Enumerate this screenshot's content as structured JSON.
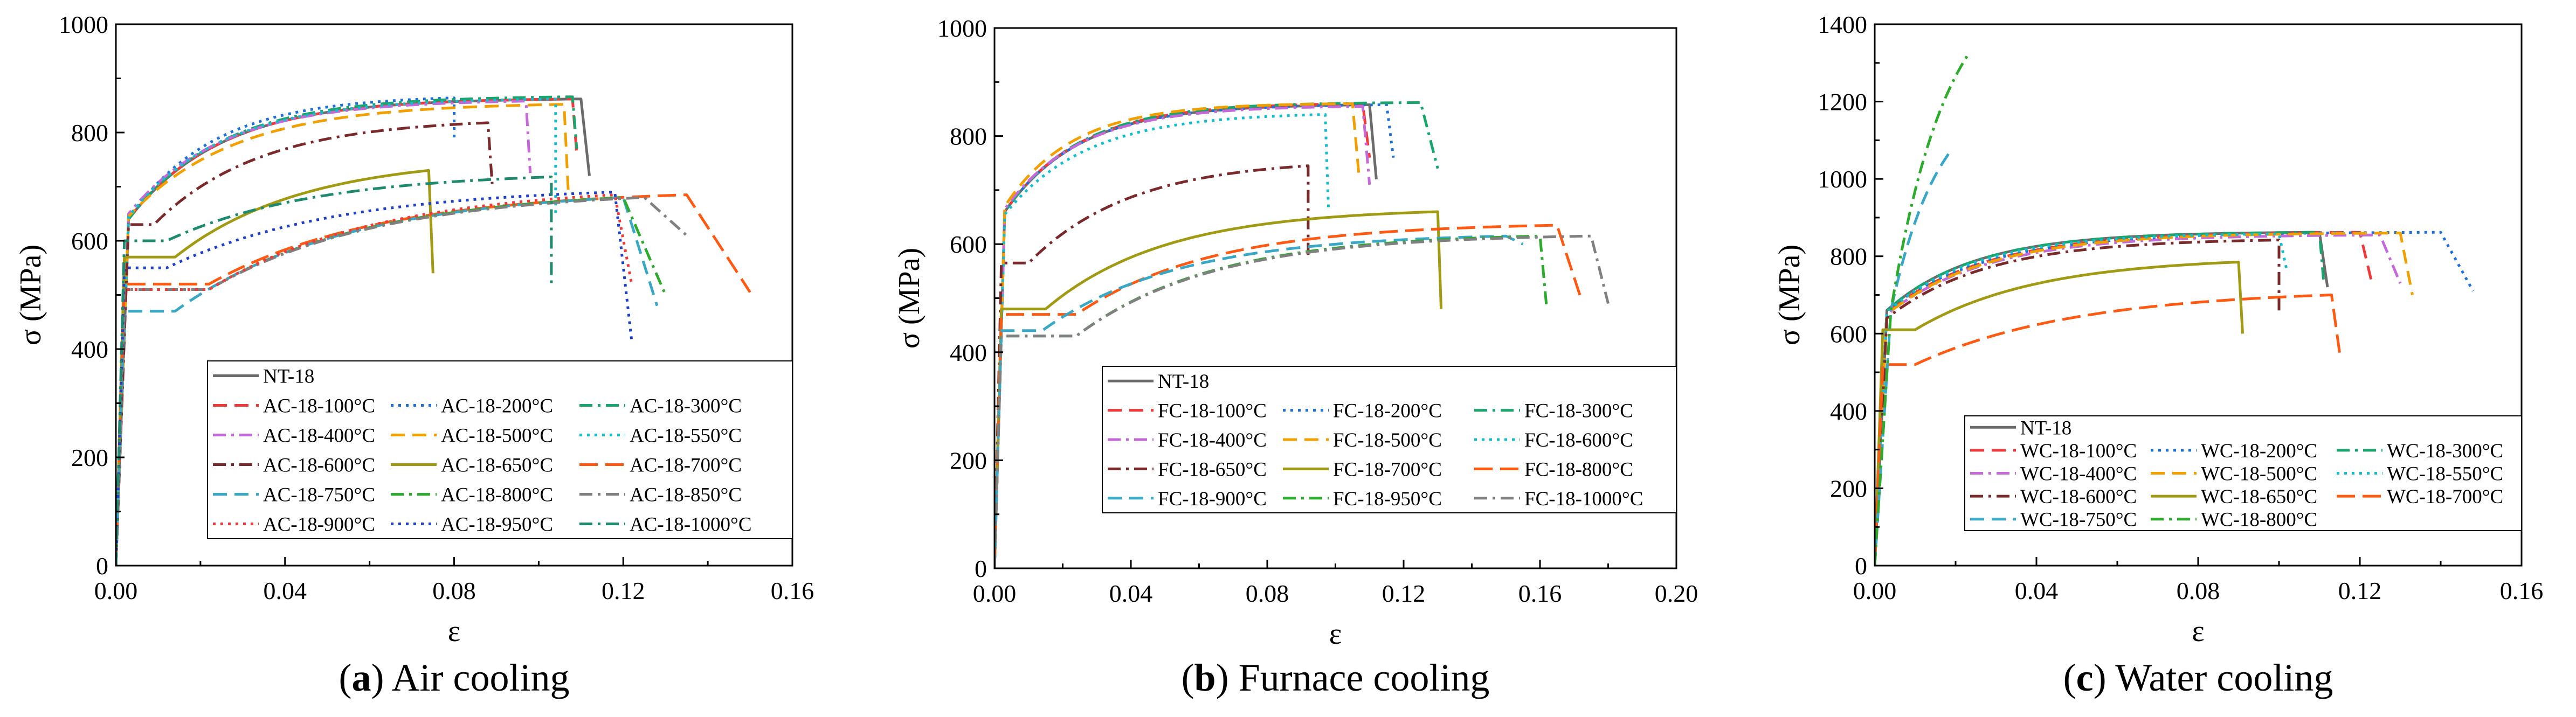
{
  "figure": {
    "panels": [
      "a",
      "b",
      "c"
    ]
  },
  "chart_data": [
    {
      "type": "line",
      "panel": "a",
      "caption_letter": "(a)",
      "caption_text": "Air cooling",
      "xlabel": "ε",
      "ylabel": "σ (MPa)",
      "xlim": [
        0,
        0.16
      ],
      "ylim": [
        0,
        1000
      ],
      "xticks": [
        0,
        0.04,
        0.08,
        0.12,
        0.16
      ],
      "xtick_labels": [
        "0.00",
        "0.04",
        "0.08",
        "0.12",
        "0.16"
      ],
      "yticks": [
        0,
        200,
        400,
        600,
        800,
        1000
      ],
      "ytick_labels": [
        "0",
        "200",
        "400",
        "600",
        "800",
        "1000"
      ],
      "legend_position": "bottom-right",
      "legend_columns": 3,
      "series": [
        {
          "name": "NT-18",
          "color": "#6b6b6b",
          "dash": "solid",
          "e0": 0.003,
          "s0": 640,
          "plateau": 0,
          "su": 862,
          "eu": 0.11,
          "k": 0.022,
          "sf": 720,
          "ef": 0.112
        },
        {
          "name": "AC-18-100°C",
          "color": "#ee3a3a",
          "dash": "dash",
          "e0": 0.003,
          "s0": 640,
          "plateau": 0,
          "su": 862,
          "eu": 0.108,
          "k": 0.022,
          "sf": 760,
          "ef": 0.109
        },
        {
          "name": "AC-18-200°C",
          "color": "#1f6fd6",
          "dash": "dot",
          "e0": 0.003,
          "s0": 640,
          "plateau": 0,
          "su": 864,
          "eu": 0.08,
          "k": 0.02,
          "sf": 790,
          "ef": 0.08
        },
        {
          "name": "AC-18-300°C",
          "color": "#1aa56e",
          "dash": "dashdot",
          "e0": 0.003,
          "s0": 640,
          "plateau": 0,
          "su": 866,
          "eu": 0.108,
          "k": 0.022,
          "sf": 770,
          "ef": 0.109
        },
        {
          "name": "AC-18-400°C",
          "color": "#c46ad8",
          "dash": "dashdot",
          "e0": 0.003,
          "s0": 650,
          "plateau": 0,
          "su": 858,
          "eu": 0.097,
          "k": 0.022,
          "sf": 725,
          "ef": 0.098
        },
        {
          "name": "AC-18-500°C",
          "color": "#f0a000",
          "dash": "dash",
          "e0": 0.003,
          "s0": 645,
          "plateau": 0,
          "su": 852,
          "eu": 0.106,
          "k": 0.025,
          "sf": 690,
          "ef": 0.107
        },
        {
          "name": "AC-18-550°C",
          "color": "#17bccc",
          "dash": "dot",
          "e0": 0.003,
          "s0": 645,
          "plateau": 0,
          "su": 862,
          "eu": 0.104,
          "k": 0.022,
          "sf": 650,
          "ef": 0.104
        },
        {
          "name": "AC-18-600°C",
          "color": "#7a2a2a",
          "dash": "dashdot",
          "e0": 0.003,
          "s0": 630,
          "plateau": 0.006,
          "su": 818,
          "eu": 0.088,
          "k": 0.025,
          "sf": 705,
          "ef": 0.089
        },
        {
          "name": "AC-18-650°C",
          "color": "#a09a14",
          "dash": "solid",
          "e0": 0.002,
          "s0": 570,
          "plateau": 0.012,
          "su": 730,
          "eu": 0.074,
          "k": 0.03,
          "sf": 540,
          "ef": 0.075
        },
        {
          "name": "AC-18-700°C",
          "color": "#ff5a14",
          "dash": "longdash",
          "e0": 0.002,
          "s0": 520,
          "plateau": 0.02,
          "su": 685,
          "eu": 0.135,
          "k": 0.04,
          "sf": 505,
          "ef": 0.15
        },
        {
          "name": "AC-18-750°C",
          "color": "#3aa7c4",
          "dash": "dash",
          "e0": 0.002,
          "s0": 470,
          "plateau": 0.012,
          "su": 680,
          "eu": 0.12,
          "k": 0.04,
          "sf": 480,
          "ef": 0.128
        },
        {
          "name": "AC-18-800°C",
          "color": "#2eab2e",
          "dash": "dashdot",
          "e0": 0.002,
          "s0": 510,
          "plateau": 0.02,
          "su": 680,
          "eu": 0.12,
          "k": 0.04,
          "sf": 500,
          "ef": 0.13
        },
        {
          "name": "AC-18-850°C",
          "color": "#808080",
          "dash": "dashdot",
          "e0": 0.002,
          "s0": 510,
          "plateau": 0.02,
          "su": 680,
          "eu": 0.125,
          "k": 0.04,
          "sf": 610,
          "ef": 0.135
        },
        {
          "name": "AC-18-900°C",
          "color": "#ee3a3a",
          "dash": "dot",
          "e0": 0.002,
          "s0": 510,
          "plateau": 0.02,
          "su": 685,
          "eu": 0.118,
          "k": 0.04,
          "sf": 520,
          "ef": 0.122
        },
        {
          "name": "AC-18-950°C",
          "color": "#1f3fc4",
          "dash": "dot",
          "e0": 0.002,
          "s0": 550,
          "plateau": 0.01,
          "su": 690,
          "eu": 0.118,
          "k": 0.04,
          "sf": 415,
          "ef": 0.122
        },
        {
          "name": "AC-18-1000°C",
          "color": "#1f8a6e",
          "dash": "dashdot",
          "e0": 0.002,
          "s0": 600,
          "plateau": 0.01,
          "su": 718,
          "eu": 0.103,
          "k": 0.035,
          "sf": 520,
          "ef": 0.103
        }
      ]
    },
    {
      "type": "line",
      "panel": "b",
      "caption_letter": "(b)",
      "caption_text": "Furnace cooling",
      "xlabel": "ε",
      "ylabel": "σ (MPa)",
      "xlim": [
        0,
        0.2
      ],
      "ylim": [
        0,
        1000
      ],
      "xticks": [
        0,
        0.04,
        0.08,
        0.12,
        0.16,
        0.2
      ],
      "xtick_labels": [
        "0.00",
        "0.04",
        "0.08",
        "0.12",
        "0.16",
        "0.20"
      ],
      "yticks": [
        0,
        200,
        400,
        600,
        800,
        1000
      ],
      "ytick_labels": [
        "0",
        "200",
        "400",
        "600",
        "800",
        "1000"
      ],
      "legend_position": "bottom-right",
      "legend_columns": 3,
      "series": [
        {
          "name": "NT-18",
          "color": "#6b6b6b",
          "dash": "solid",
          "e0": 0.003,
          "s0": 660,
          "plateau": 0,
          "su": 858,
          "eu": 0.11,
          "k": 0.022,
          "sf": 720,
          "ef": 0.112
        },
        {
          "name": "FC-18-100°C",
          "color": "#ee3a3a",
          "dash": "dash",
          "e0": 0.003,
          "s0": 660,
          "plateau": 0,
          "su": 860,
          "eu": 0.108,
          "k": 0.022,
          "sf": 760,
          "ef": 0.11
        },
        {
          "name": "FC-18-200°C",
          "color": "#1f6fd6",
          "dash": "dot",
          "e0": 0.003,
          "s0": 660,
          "plateau": 0,
          "su": 858,
          "eu": 0.115,
          "k": 0.022,
          "sf": 760,
          "ef": 0.117
        },
        {
          "name": "FC-18-300°C",
          "color": "#1aa56e",
          "dash": "dashdot",
          "e0": 0.003,
          "s0": 660,
          "plateau": 0,
          "su": 862,
          "eu": 0.125,
          "k": 0.022,
          "sf": 740,
          "ef": 0.13
        },
        {
          "name": "FC-18-400°C",
          "color": "#c46ad8",
          "dash": "dashdot",
          "e0": 0.003,
          "s0": 665,
          "plateau": 0,
          "su": 855,
          "eu": 0.108,
          "k": 0.022,
          "sf": 710,
          "ef": 0.11
        },
        {
          "name": "FC-18-500°C",
          "color": "#f0a000",
          "dash": "dash",
          "e0": 0.003,
          "s0": 670,
          "plateau": 0,
          "su": 860,
          "eu": 0.105,
          "k": 0.02,
          "sf": 720,
          "ef": 0.107
        },
        {
          "name": "FC-18-600°C",
          "color": "#17bccc",
          "dash": "dot",
          "e0": 0.003,
          "s0": 655,
          "plateau": 0,
          "su": 840,
          "eu": 0.097,
          "k": 0.024,
          "sf": 660,
          "ef": 0.098
        },
        {
          "name": "FC-18-650°C",
          "color": "#7a2a2a",
          "dash": "dashdot",
          "e0": 0.002,
          "s0": 565,
          "plateau": 0.008,
          "su": 745,
          "eu": 0.092,
          "k": 0.03,
          "sf": 580,
          "ef": 0.092
        },
        {
          "name": "FC-18-700°C",
          "color": "#a09a14",
          "dash": "solid",
          "e0": 0.002,
          "s0": 480,
          "plateau": 0.013,
          "su": 660,
          "eu": 0.13,
          "k": 0.035,
          "sf": 480,
          "ef": 0.131
        },
        {
          "name": "FC-18-800°C",
          "color": "#ff5a14",
          "dash": "longdash",
          "e0": 0.002,
          "s0": 470,
          "plateau": 0.022,
          "su": 635,
          "eu": 0.165,
          "k": 0.04,
          "sf": 500,
          "ef": 0.172
        },
        {
          "name": "FC-18-900°C",
          "color": "#3aa7c4",
          "dash": "dash",
          "e0": 0.002,
          "s0": 440,
          "plateau": 0.012,
          "su": 615,
          "eu": 0.15,
          "k": 0.04,
          "sf": 600,
          "ef": 0.155
        },
        {
          "name": "FC-18-950°C",
          "color": "#2eab2e",
          "dash": "dashdot",
          "e0": 0.002,
          "s0": 430,
          "plateau": 0.022,
          "su": 615,
          "eu": 0.16,
          "k": 0.04,
          "sf": 480,
          "ef": 0.162
        },
        {
          "name": "FC-18-1000°C",
          "color": "#808080",
          "dash": "dashdot",
          "e0": 0.002,
          "s0": 430,
          "plateau": 0.022,
          "su": 615,
          "eu": 0.175,
          "k": 0.04,
          "sf": 490,
          "ef": 0.18
        }
      ]
    },
    {
      "type": "line",
      "panel": "c",
      "caption_letter": "(c)",
      "caption_text": "Water cooling",
      "xlabel": "ε",
      "ylabel": "σ (MPa)",
      "xlim": [
        0,
        0.16
      ],
      "ylim": [
        0,
        1400
      ],
      "xticks": [
        0,
        0.04,
        0.08,
        0.12,
        0.16
      ],
      "xtick_labels": [
        "0.00",
        "0.04",
        "0.08",
        "0.12",
        "0.16"
      ],
      "yticks": [
        0,
        200,
        400,
        600,
        800,
        1000,
        1200,
        1400
      ],
      "ytick_labels": [
        "0",
        "200",
        "400",
        "600",
        "800",
        "1000",
        "1200",
        "1400"
      ],
      "legend_position": "bottom-right",
      "legend_columns": 3,
      "series": [
        {
          "name": "NT-18",
          "color": "#6b6b6b",
          "dash": "solid",
          "e0": 0.003,
          "s0": 660,
          "plateau": 0,
          "su": 862,
          "eu": 0.11,
          "k": 0.022,
          "sf": 720,
          "ef": 0.112
        },
        {
          "name": "WC-18-100°C",
          "color": "#ee3a3a",
          "dash": "dash",
          "e0": 0.003,
          "s0": 655,
          "plateau": 0,
          "su": 862,
          "eu": 0.12,
          "k": 0.025,
          "sf": 730,
          "ef": 0.123
        },
        {
          "name": "WC-18-200°C",
          "color": "#1f6fd6",
          "dash": "dot",
          "e0": 0.003,
          "s0": 660,
          "plateau": 0,
          "su": 862,
          "eu": 0.14,
          "k": 0.025,
          "sf": 710,
          "ef": 0.148
        },
        {
          "name": "WC-18-300°C",
          "color": "#1aa56e",
          "dash": "dashdot",
          "e0": 0.003,
          "s0": 660,
          "plateau": 0,
          "su": 862,
          "eu": 0.11,
          "k": 0.022,
          "sf": 740,
          "ef": 0.111
        },
        {
          "name": "WC-18-400°C",
          "color": "#c46ad8",
          "dash": "dashdot",
          "e0": 0.003,
          "s0": 650,
          "plateau": 0,
          "su": 855,
          "eu": 0.125,
          "k": 0.025,
          "sf": 730,
          "ef": 0.13
        },
        {
          "name": "WC-18-500°C",
          "color": "#f0a000",
          "dash": "dash",
          "e0": 0.003,
          "s0": 650,
          "plateau": 0,
          "su": 860,
          "eu": 0.13,
          "k": 0.025,
          "sf": 700,
          "ef": 0.133
        },
        {
          "name": "WC-18-550°C",
          "color": "#17bccc",
          "dash": "dot",
          "e0": 0.003,
          "s0": 655,
          "plateau": 0,
          "su": 858,
          "eu": 0.1,
          "k": 0.022,
          "sf": 760,
          "ef": 0.102
        },
        {
          "name": "WC-18-600°C",
          "color": "#7a2a2a",
          "dash": "dashdot",
          "e0": 0.003,
          "s0": 640,
          "plateau": 0,
          "su": 842,
          "eu": 0.1,
          "k": 0.025,
          "sf": 660,
          "ef": 0.1
        },
        {
          "name": "WC-18-650°C",
          "color": "#a09a14",
          "dash": "solid",
          "e0": 0.002,
          "s0": 610,
          "plateau": 0.008,
          "su": 785,
          "eu": 0.09,
          "k": 0.03,
          "sf": 600,
          "ef": 0.091
        },
        {
          "name": "WC-18-700°C",
          "color": "#ff5a14",
          "dash": "longdash",
          "e0": 0.002,
          "s0": 520,
          "plateau": 0.008,
          "su": 700,
          "eu": 0.113,
          "k": 0.04,
          "sf": 550,
          "ef": 0.115
        },
        {
          "name": "WC-18-750°C",
          "color": "#3aa7c4",
          "dash": "dash",
          "e0": 0.004,
          "s0": 660,
          "plateau": 0,
          "su": 1075,
          "eu": 0.019,
          "k": 0.012,
          "sf": 1075,
          "ef": 0.019
        },
        {
          "name": "WC-18-800°C",
          "color": "#2eab2e",
          "dash": "dashdot",
          "e0": 0.004,
          "s0": 660,
          "plateau": 0,
          "su": 1320,
          "eu": 0.023,
          "k": 0.014,
          "sf": 1320,
          "ef": 0.023
        }
      ]
    }
  ]
}
